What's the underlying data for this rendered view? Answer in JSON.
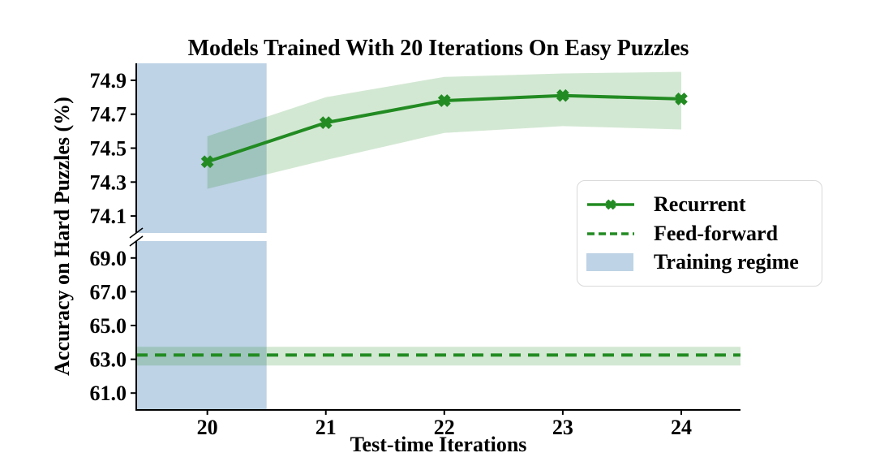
{
  "title": "Models Trained With 20 Iterations On Easy Puzzles",
  "axis_labels": {
    "x": "Test-time Iterations",
    "y": "Accuracy on Hard Puzzles (%)"
  },
  "legend": {
    "items": [
      {
        "label": "Recurrent",
        "sample": "solid-green-line-with-x-marker"
      },
      {
        "label": "Feed-forward",
        "sample": "dashed-green-line"
      },
      {
        "label": "Training regime",
        "sample": "light-blue-filled-patch"
      }
    ]
  },
  "colors": {
    "green": "#228B22",
    "green_band": "rgba(34,139,34,0.2)",
    "training_blue": "rgba(70,130,180,0.35)",
    "axis_black": "#000000",
    "legend_border": "#d9d9d9"
  },
  "chart_data": {
    "type": "line",
    "title": "Models Trained With 20 Iterations On Easy Puzzles",
    "xlabel": "Test-time Iterations",
    "ylabel": "Accuracy on Hard Puzzles (%)",
    "grid": false,
    "legend_position": "center-right",
    "x": [
      20,
      21,
      22,
      23,
      24
    ],
    "series": [
      {
        "name": "Recurrent",
        "style": "solid line, X markers, forestgreen, shaded confidence band",
        "values": [
          74.42,
          74.65,
          74.78,
          74.81,
          74.79
        ],
        "band_low": [
          74.26,
          74.43,
          74.59,
          74.63,
          74.61
        ],
        "band_high": [
          74.57,
          74.8,
          74.92,
          74.94,
          74.95
        ]
      },
      {
        "name": "Feed-forward",
        "style": "dashed horizontal line, forestgreen, shaded confidence band",
        "constant_value": 63.25,
        "band_low": 62.63,
        "band_high": 63.74
      }
    ],
    "training_regime_span": {
      "x_start": 19.4,
      "x_end": 20.5
    },
    "axes": {
      "xlim": [
        19.4,
        24.5
      ],
      "x_ticks": [
        20,
        21,
        22,
        23,
        24
      ],
      "x_tick_labels": [
        "20",
        "21",
        "22",
        "23",
        "24"
      ],
      "broken_y_axis": true,
      "top_panel": {
        "ylim": [
          74.0,
          75.0
        ],
        "ticks": [
          74.9,
          74.7,
          74.5,
          74.3,
          74.1
        ],
        "tick_labels": [
          "74.9",
          "74.7",
          "74.5",
          "74.3",
          "74.1"
        ]
      },
      "bottom_panel": {
        "ylim": [
          60.0,
          70.0
        ],
        "ticks": [
          69.0,
          67.0,
          65.0,
          63.0,
          61.0
        ],
        "tick_labels": [
          "69.0",
          "67.0",
          "65.0",
          "63.0",
          "61.0"
        ]
      }
    }
  }
}
